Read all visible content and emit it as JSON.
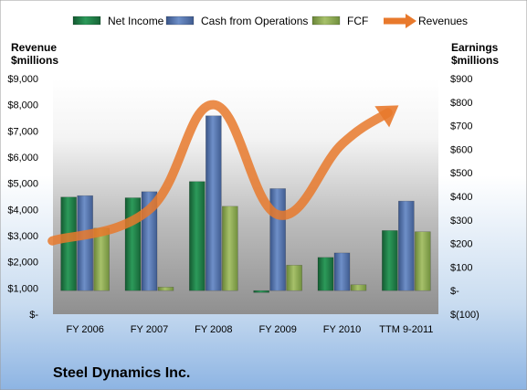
{
  "chart_data": {
    "type": "bar",
    "title": "Steel Dynamics Inc.",
    "categories": [
      "FY 2006",
      "FY 2007",
      "FY 2008",
      "FY 2009",
      "FY 2010",
      "TTM 9-2011"
    ],
    "left_axis": {
      "label": "Revenue\n$millions",
      "ticks": [
        "$-",
        "$1,000",
        "$2,000",
        "$3,000",
        "$4,000",
        "$5,000",
        "$6,000",
        "$7,000",
        "$8,000",
        "$9,000"
      ],
      "ylim": [
        0,
        9000
      ]
    },
    "right_axis": {
      "label": "Earnings\n$millions",
      "ticks": [
        "$(100)",
        "$-",
        "$100",
        "$200",
        "$300",
        "$400",
        "$500",
        "$600",
        "$700",
        "$800",
        "$900"
      ],
      "ylim": [
        -100,
        900
      ]
    },
    "series": [
      {
        "name": "Net Income",
        "type": "bar",
        "axis": "right",
        "color": "#1E7B45",
        "values": [
          397,
          394,
          463,
          -8,
          141,
          255
        ]
      },
      {
        "name": "Cash from Operations",
        "type": "bar",
        "axis": "right",
        "color": "#4F6FA8",
        "values": [
          403,
          420,
          742,
          433,
          160,
          380
        ]
      },
      {
        "name": "FCF",
        "type": "bar",
        "axis": "right",
        "color": "#8AA64E",
        "values": [
          265,
          15,
          358,
          108,
          25,
          250
        ]
      },
      {
        "name": "Revenues",
        "type": "line",
        "axis": "left",
        "color": "#E8792C",
        "values": [
          2800,
          4000,
          8000,
          3800,
          6500,
          7700
        ]
      }
    ],
    "legend_position": "top",
    "grid": false
  }
}
